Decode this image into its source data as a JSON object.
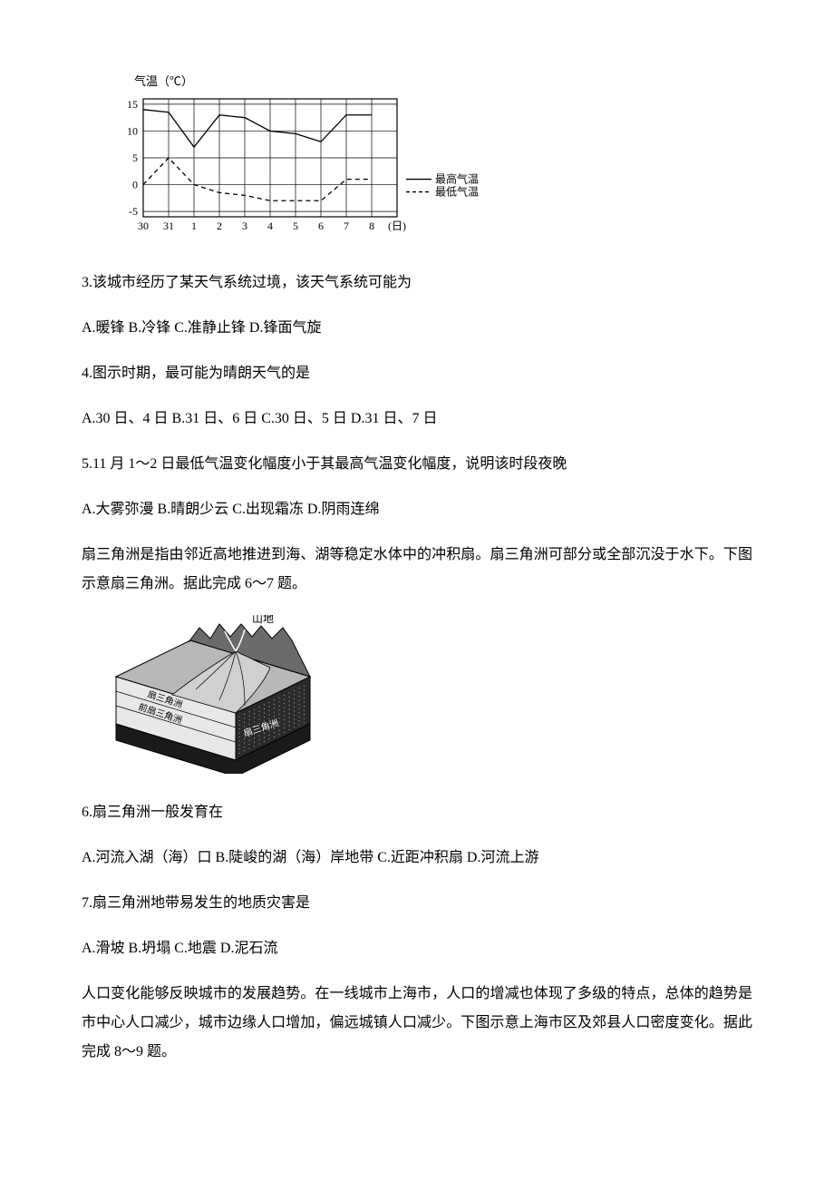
{
  "chart1": {
    "type": "line",
    "axis_title": "气温（℃）",
    "x_labels": [
      "30",
      "31",
      "1",
      "2",
      "3",
      "4",
      "5",
      "6",
      "7",
      "8",
      "(日)"
    ],
    "y_labels": [
      "-5",
      "0",
      "5",
      "10",
      "15"
    ],
    "y_values": [
      -5,
      0,
      5,
      10,
      15
    ],
    "ylim": [
      -6,
      16
    ],
    "series1_name": "最高气温",
    "series2_name": "最低气温",
    "series1_values": [
      14,
      13.5,
      7,
      13,
      12.5,
      10,
      9.5,
      8,
      13,
      13
    ],
    "series2_values": [
      0,
      5,
      0,
      -1.5,
      -2,
      -3,
      -3,
      -3,
      1,
      1
    ],
    "colors": {
      "line": "#000000",
      "grid": "#000000",
      "background": "#ffffff"
    },
    "line_width": 1.3,
    "grid_width": 0.7
  },
  "q3": {
    "stem": "3.该城市经历了某天气系统过境，该天气系统可能为",
    "options": "A.暖锋 B.冷锋 C.准静止锋 D.锋面气旋"
  },
  "q4": {
    "stem": "4.图示时期，最可能为晴朗天气的是",
    "options": "A.30 日、4 日 B.31 日、6 日 C.30 日、5 日 D.31 日、7 日"
  },
  "q5": {
    "stem": "5.11 月 1～2 日最低气温变化幅度小于其最高气温变化幅度，说明该时段夜晚",
    "options": "A.大雾弥漫 B.晴朗少云 C.出现霜冻 D.阴雨连绵"
  },
  "passage2": "扇三角洲是指由邻近高地推进到海、湖等稳定水体中的冲积扇。扇三角洲可部分或全部沉没于水下。下图示意扇三角洲。据此完成 6～7 题。",
  "diagram": {
    "label_mountain": "山地",
    "label1": "扇三角洲",
    "label2": "前扇三角洲",
    "label3": "扇三角洲",
    "colors": {
      "mountain": "#6b6b6b",
      "fan_surface": "#b8b8b8",
      "side_light": "#e8e8e8",
      "side_dark": "#2a2a2a",
      "bottom": "#1a1a1a",
      "water": "#888888",
      "outline": "#000000"
    }
  },
  "q6": {
    "stem": "6.扇三角洲一般发育在",
    "options": "A.河流入湖（海）口 B.陡峻的湖（海）岸地带 C.近距冲积扇 D.河流上游"
  },
  "q7": {
    "stem": "7.扇三角洲地带易发生的地质灾害是",
    "options": "A.滑坡 B.坍塌 C.地震 D.泥石流"
  },
  "passage3": "人口变化能够反映城市的发展趋势。在一线城市上海市，人口的增减也体现了多级的特点，总体的趋势是市中心人口减少，城市边缘人口增加，偏远城镇人口减少。下图示意上海市区及郊县人口密度变化。据此完成 8～9 题。"
}
